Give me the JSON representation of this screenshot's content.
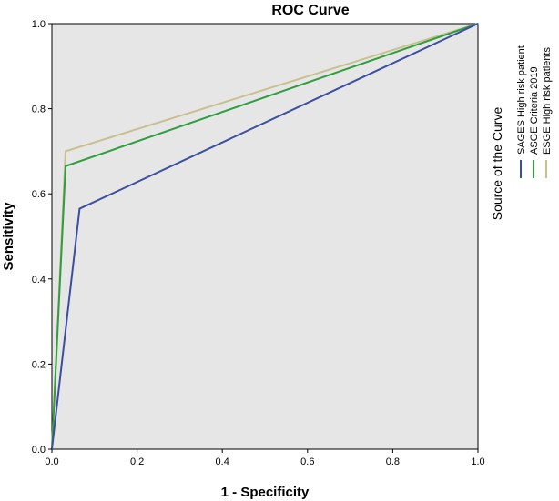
{
  "chart_data": {
    "type": "line",
    "title": "ROC Curve",
    "xlabel": "1 - Specificity",
    "ylabel": "Sensitivity",
    "xlim": [
      0,
      1
    ],
    "ylim": [
      0,
      1
    ],
    "x_ticks": [
      "0.0",
      "0.2",
      "0.4",
      "0.6",
      "0.8",
      "1.0"
    ],
    "y_ticks": [
      "0.0",
      "0.2",
      "0.4",
      "0.6",
      "0.8",
      "1.0"
    ],
    "legend_title": "Source of the Curve",
    "legend_position": "right",
    "series": [
      {
        "name": "SAGES High risk patient",
        "color": "#3a4fa0",
        "x": [
          0,
          0.065,
          1
        ],
        "y": [
          0,
          0.565,
          1
        ]
      },
      {
        "name": "ASGE Criteria 2019",
        "color": "#2e9e3e",
        "x": [
          0,
          0.032,
          1
        ],
        "y": [
          0,
          0.665,
          1
        ]
      },
      {
        "name": "ESGE High risk patients",
        "color": "#c9c08f",
        "x": [
          0,
          0.032,
          1
        ],
        "y": [
          0,
          0.7,
          1
        ]
      }
    ],
    "plot_background": "#e6e6e6"
  }
}
